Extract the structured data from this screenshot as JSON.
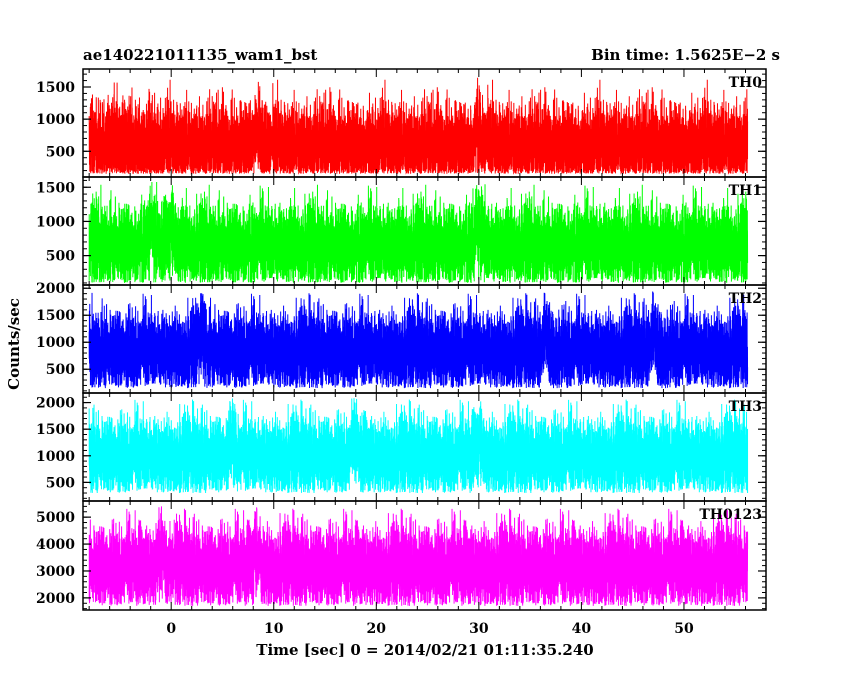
{
  "header": {
    "left": "ae140221011135_wam1_bst",
    "right": "Bin time: 1.5625E−2 s"
  },
  "xlabel": "Time [sec] 0 = 2014/02/21 01:11:35.240",
  "ylabel": "Counts/sec",
  "chart_data": {
    "type": "line",
    "x_range": [
      -8.6,
      58.0
    ],
    "x_ticks": [
      0,
      10,
      20,
      30,
      40,
      50
    ],
    "data_x_range": [
      -8.0,
      56.2
    ],
    "series": [
      {
        "name": "TH0",
        "color": "#ff0000",
        "ylim": [
          100,
          1780
        ],
        "yticks": [
          500,
          1000,
          1500
        ],
        "approx_mean": 600,
        "approx_min": 150,
        "approx_max": 1750,
        "peak_times": [
          8.3,
          30.0
        ]
      },
      {
        "name": "TH1",
        "color": "#00ff00",
        "ylim": [
          70,
          1650
        ],
        "yticks": [
          500,
          1000,
          1500
        ],
        "approx_mean": 650,
        "approx_min": 100,
        "approx_max": 1600,
        "peak_times": [
          -2.0,
          0.0,
          30.0
        ]
      },
      {
        "name": "TH2",
        "color": "#0000ff",
        "ylim": [
          60,
          2060
        ],
        "yticks": [
          500,
          1000,
          1500,
          2000
        ],
        "approx_mean": 850,
        "approx_min": 150,
        "approx_max": 1950,
        "peak_times": [
          3.0,
          36.5,
          47.0
        ]
      },
      {
        "name": "TH3",
        "color": "#00ffff",
        "ylim": [
          150,
          2180
        ],
        "yticks": [
          500,
          1000,
          1500,
          2000
        ],
        "approx_mean": 1000,
        "approx_min": 300,
        "approx_max": 2100,
        "peak_times": [
          6.0,
          18.0,
          30.0
        ]
      },
      {
        "name": "TH0123",
        "color": "#ff00ff",
        "ylim": [
          1550,
          5600
        ],
        "yticks": [
          2000,
          3000,
          4000,
          5000
        ],
        "approx_mean": 3150,
        "approx_min": 1700,
        "approx_max": 5400,
        "peak_times": [
          8.3,
          -1.0
        ]
      }
    ]
  }
}
